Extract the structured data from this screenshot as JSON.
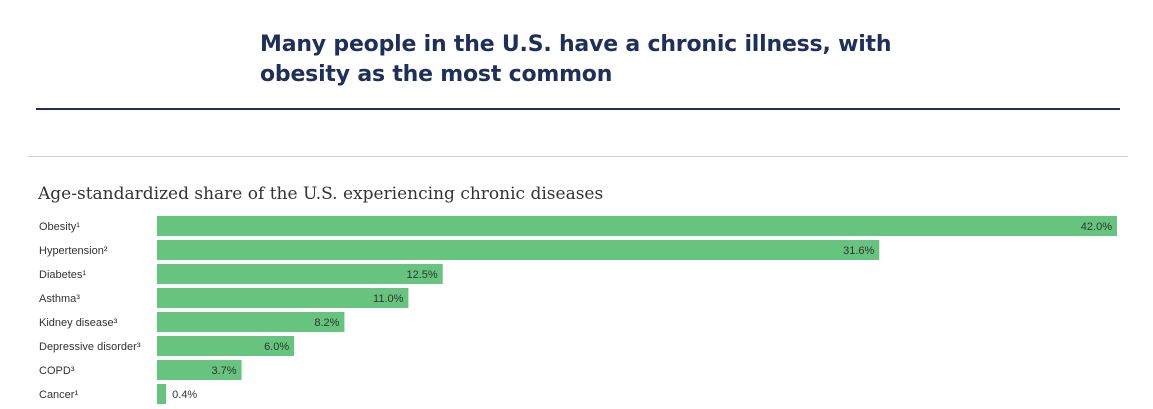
{
  "headline": "Many people in the U.S. have a chronic illness, with obesity as the most common",
  "chart_data": {
    "type": "bar",
    "orientation": "horizontal",
    "title": "Age-standardized share of the U.S. experiencing chronic diseases",
    "categories": [
      "Obesity¹",
      "Hypertension²",
      "Diabetes¹",
      "Asthma³",
      "Kidney disease³",
      "Depressive disorder³",
      "COPD³",
      "Cancer¹"
    ],
    "values": [
      42.0,
      31.6,
      12.5,
      11.0,
      8.2,
      6.0,
      3.7,
      0.4
    ],
    "value_labels": [
      "42.0%",
      "31.6%",
      "12.5%",
      "11.0%",
      "8.2%",
      "6.0%",
      "3.7%",
      "0.4%"
    ],
    "xlim": [
      0,
      42.0
    ],
    "bar_color": "#66c47f",
    "grid": false,
    "legend": "none"
  }
}
